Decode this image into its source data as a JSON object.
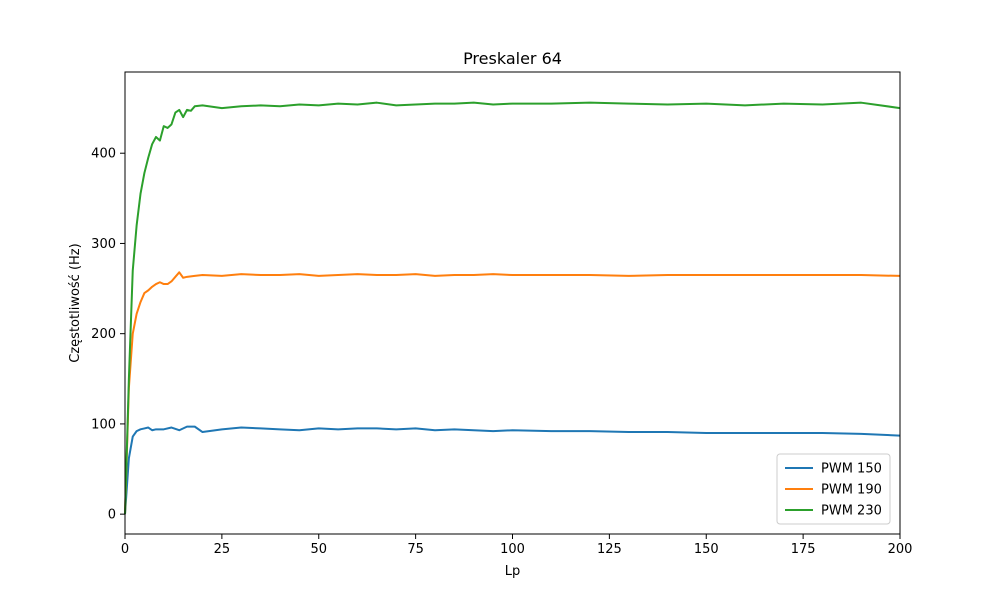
{
  "chart_data": {
    "type": "line",
    "title": "Preskaler 64",
    "xlabel": "Lp",
    "ylabel": "Częstotliwość (Hz)",
    "xlim": [
      0,
      200
    ],
    "ylim": [
      -22,
      490
    ],
    "xticks": [
      0,
      25,
      50,
      75,
      100,
      125,
      150,
      175,
      200
    ],
    "yticks": [
      0,
      100,
      200,
      300,
      400
    ],
    "grid": false,
    "legend_position": "lower-right",
    "series": [
      {
        "name": "PWM 150",
        "color": "#1f77b4",
        "x": [
          0,
          1,
          2,
          3,
          4,
          5,
          6,
          7,
          8,
          10,
          12,
          14,
          16,
          18,
          20,
          25,
          30,
          35,
          40,
          45,
          50,
          55,
          60,
          65,
          70,
          75,
          80,
          85,
          90,
          95,
          100,
          110,
          120,
          130,
          140,
          150,
          160,
          170,
          180,
          190,
          200
        ],
        "y": [
          0,
          62,
          86,
          92,
          94,
          95,
          96,
          93,
          94,
          94,
          96,
          93,
          97,
          97,
          91,
          94,
          96,
          95,
          94,
          93,
          95,
          94,
          95,
          95,
          94,
          95,
          93,
          94,
          93,
          92,
          93,
          92,
          92,
          91,
          91,
          90,
          90,
          90,
          90,
          89,
          87
        ]
      },
      {
        "name": "PWM 190",
        "color": "#ff7f0e",
        "x": [
          0,
          1,
          2,
          3,
          4,
          5,
          6,
          7,
          8,
          9,
          10,
          11,
          12,
          13,
          14,
          15,
          16,
          18,
          20,
          25,
          30,
          35,
          40,
          45,
          50,
          55,
          60,
          65,
          70,
          75,
          80,
          85,
          90,
          95,
          100,
          110,
          120,
          130,
          140,
          150,
          160,
          170,
          180,
          190,
          200
        ],
        "y": [
          0,
          140,
          200,
          222,
          235,
          245,
          248,
          252,
          255,
          257,
          255,
          255,
          258,
          263,
          268,
          262,
          263,
          264,
          265,
          264,
          266,
          265,
          265,
          266,
          264,
          265,
          266,
          265,
          265,
          266,
          264,
          265,
          265,
          266,
          265,
          265,
          265,
          264,
          265,
          265,
          265,
          265,
          265,
          265,
          264
        ]
      },
      {
        "name": "PWM 230",
        "color": "#2ca02c",
        "x": [
          0,
          1,
          2,
          3,
          4,
          5,
          6,
          7,
          8,
          9,
          10,
          11,
          12,
          13,
          14,
          15,
          16,
          17,
          18,
          20,
          25,
          30,
          35,
          40,
          45,
          50,
          55,
          60,
          65,
          70,
          75,
          80,
          85,
          90,
          95,
          100,
          110,
          120,
          130,
          140,
          150,
          160,
          170,
          180,
          190,
          200
        ],
        "y": [
          0,
          150,
          270,
          320,
          355,
          378,
          395,
          410,
          418,
          414,
          430,
          428,
          432,
          445,
          448,
          440,
          448,
          447,
          452,
          453,
          450,
          452,
          453,
          452,
          454,
          453,
          455,
          454,
          456,
          453,
          454,
          455,
          455,
          456,
          454,
          455,
          455,
          456,
          455,
          454,
          455,
          453,
          455,
          454,
          456,
          450
        ]
      }
    ]
  }
}
